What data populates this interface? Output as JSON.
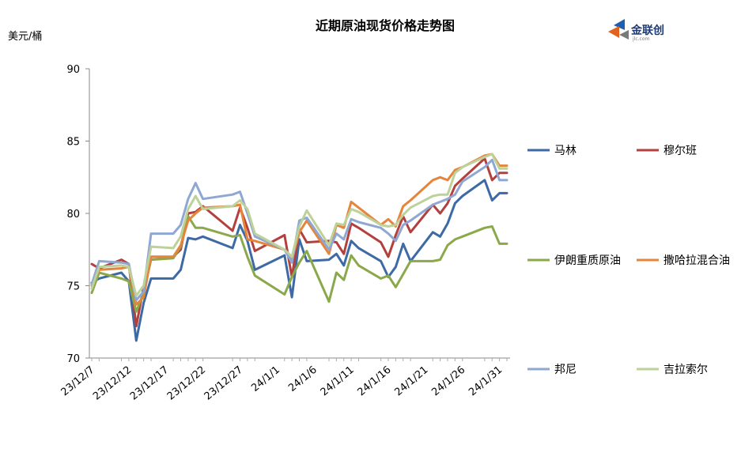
{
  "chart_data": {
    "type": "line",
    "title": "近期原油现货价格走势图",
    "unit_label": "美元/桶",
    "logo_text": "金联创",
    "logo_subtext": "jlc.com",
    "x_tick_labels": [
      "23/12/7",
      "23/12/12",
      "23/12/17",
      "23/12/22",
      "23/12/27",
      "24/1/1",
      "24/1/6",
      "24/1/11",
      "24/1/16",
      "24/1/21",
      "24/1/26",
      "24/1/31"
    ],
    "ylim": [
      70,
      90
    ],
    "y_ticks": [
      70,
      75,
      80,
      85,
      90
    ],
    "grid": false,
    "legend_position": "right",
    "x": [
      "23/12/7",
      "23/12/8",
      "23/12/11",
      "23/12/12",
      "23/12/13",
      "23/12/14",
      "23/12/15",
      "23/12/18",
      "23/12/19",
      "23/12/20",
      "23/12/21",
      "23/12/22",
      "23/12/26",
      "23/12/27",
      "23/12/28",
      "23/12/29",
      "24/1/2",
      "24/1/3",
      "24/1/4",
      "24/1/5",
      "24/1/8",
      "24/1/9",
      "24/1/10",
      "24/1/11",
      "24/1/12",
      "24/1/15",
      "24/1/16",
      "24/1/17",
      "24/1/18",
      "24/1/19",
      "24/1/22",
      "24/1/23",
      "24/1/24",
      "24/1/25",
      "24/1/26",
      "24/1/29",
      "24/1/30",
      "24/1/31",
      "24/2/1"
    ],
    "series": [
      {
        "name": "马林",
        "color": "#3d6aa5",
        "values": [
          75.2,
          75.5,
          75.9,
          75.3,
          71.2,
          73.8,
          75.5,
          75.5,
          76.1,
          78.3,
          78.2,
          78.4,
          77.6,
          79.2,
          78.1,
          76.1,
          77.1,
          74.2,
          78.2,
          76.7,
          76.8,
          77.2,
          76.4,
          78.1,
          77.6,
          76.7,
          75.6,
          76.3,
          77.9,
          76.7,
          78.7,
          78.4,
          79.3,
          80.7,
          81.2,
          82.3,
          80.9,
          81.4,
          81.4
        ]
      },
      {
        "name": "穆尔班",
        "color": "#b4403d",
        "values": [
          76.5,
          76.2,
          76.8,
          76.5,
          72.2,
          74.9,
          77.0,
          77.0,
          77.5,
          80.0,
          80.1,
          80.5,
          78.8,
          80.4,
          79.0,
          77.4,
          78.5,
          75.6,
          78.9,
          78.0,
          78.1,
          78.0,
          77.2,
          79.3,
          79.0,
          78.0,
          77.0,
          78.5,
          79.8,
          78.7,
          80.6,
          80.0,
          80.7,
          81.9,
          82.4,
          83.8,
          82.3,
          82.8,
          82.8
        ]
      },
      {
        "name": "伊朗重质原油",
        "color": "#8ba84b",
        "values": [
          74.5,
          75.9,
          75.5,
          75.3,
          73.2,
          74.5,
          76.8,
          76.9,
          77.7,
          79.8,
          79.0,
          79.0,
          78.4,
          78.5,
          77.0,
          75.7,
          74.4,
          75.6,
          76.6,
          77.4,
          73.9,
          75.9,
          75.4,
          77.1,
          76.4,
          75.5,
          75.7,
          74.9,
          75.8,
          76.7,
          76.7,
          76.8,
          77.8,
          78.2,
          78.4,
          79.0,
          79.1,
          77.9,
          77.9
        ]
      },
      {
        "name": "撒哈拉混合油",
        "color": "#e5853c",
        "values": [
          75.0,
          76.1,
          76.2,
          76.3,
          73.7,
          74.2,
          77.0,
          77.0,
          77.8,
          79.5,
          80.0,
          80.4,
          80.5,
          80.6,
          78.2,
          78.1,
          77.5,
          76.8,
          78.7,
          79.5,
          77.2,
          79.2,
          79.0,
          80.8,
          80.4,
          79.2,
          79.6,
          79.1,
          80.5,
          80.9,
          82.3,
          82.5,
          82.3,
          83.0,
          83.2,
          84.0,
          84.1,
          83.3,
          83.3
        ]
      },
      {
        "name": "邦尼",
        "color": "#8fa7d3",
        "values": [
          75.1,
          76.7,
          76.6,
          76.5,
          74.0,
          74.6,
          78.6,
          78.6,
          79.2,
          81.0,
          82.1,
          81.0,
          81.3,
          81.5,
          80.0,
          78.4,
          77.5,
          76.6,
          79.5,
          79.7,
          77.5,
          78.6,
          78.2,
          79.6,
          79.4,
          79.0,
          78.6,
          78.1,
          79.2,
          79.5,
          80.6,
          80.8,
          81.0,
          81.3,
          82.2,
          83.2,
          83.7,
          82.3,
          82.3
        ]
      },
      {
        "name": "吉拉索尔",
        "color": "#bdd19a",
        "values": [
          74.8,
          76.3,
          76.4,
          76.3,
          74.3,
          75.0,
          77.7,
          77.6,
          78.4,
          80.3,
          81.2,
          80.3,
          80.5,
          80.9,
          80.3,
          78.6,
          77.5,
          77.0,
          79.1,
          80.2,
          77.8,
          79.3,
          79.2,
          80.3,
          80.1,
          79.2,
          79.1,
          79.2,
          79.9,
          80.4,
          81.2,
          81.3,
          81.3,
          82.8,
          83.2,
          83.9,
          84.1,
          83.1,
          83.1
        ]
      }
    ]
  }
}
